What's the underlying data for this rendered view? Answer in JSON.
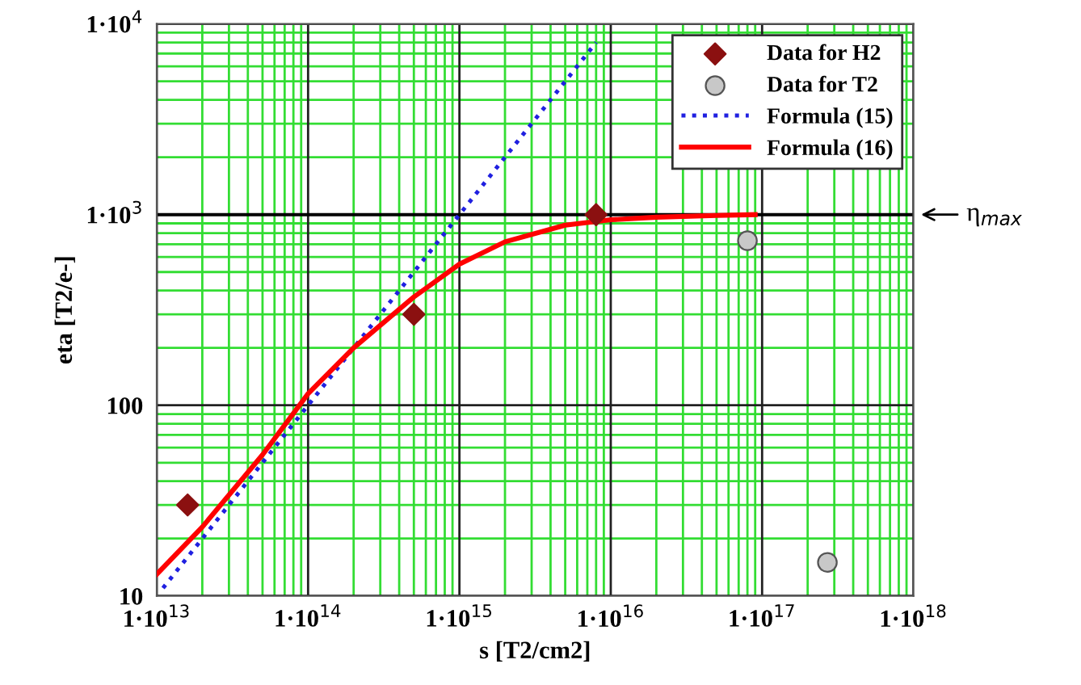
{
  "chart_data": {
    "type": "scatter",
    "xlabel": "s [T2/cm2]",
    "ylabel": "eta [T2/e-]",
    "log": "xy",
    "grid": true,
    "legend": "top right",
    "xlim": [
      10000000000000.0,
      1e+18
    ],
    "ylim": [
      10,
      10000
    ],
    "xticks": [
      {
        "value": 10000000000000.0,
        "label": "1·10$^{13}$"
      },
      {
        "value": 20000000000000.0,
        "label": null
      },
      {
        "value": 30000000000000.0,
        "label": null
      },
      {
        "value": 40000000000000.0,
        "label": null
      },
      {
        "value": 50000000000000.0,
        "label": null
      },
      {
        "value": 60000000000000.0,
        "label": null
      },
      {
        "value": 70000000000000.0,
        "label": null
      },
      {
        "value": 80000000000000.0,
        "label": null
      },
      {
        "value": 90000000000000.0,
        "label": null
      },
      {
        "value": 100000000000000.0,
        "label": "1·10$^{14}$"
      },
      {
        "value": 200000000000000.0,
        "label": null
      },
      {
        "value": 300000000000000.0,
        "label": null
      },
      {
        "value": 400000000000000.0,
        "label": null
      },
      {
        "value": 500000000000000.0,
        "label": null
      },
      {
        "value": 600000000000000.0,
        "label": null
      },
      {
        "value": 700000000000000.0,
        "label": null
      },
      {
        "value": 800000000000000.0,
        "label": null
      },
      {
        "value": 900000000000000.0,
        "label": null
      },
      {
        "value": 1000000000000000.0,
        "label": "1·10$^{15}$"
      },
      {
        "value": 2000000000000000.0,
        "label": null
      },
      {
        "value": 3000000000000000.0,
        "label": null
      },
      {
        "value": 4000000000000000.0,
        "label": null
      },
      {
        "value": 5000000000000000.0,
        "label": null
      },
      {
        "value": 6000000000000000.0,
        "label": null
      },
      {
        "value": 7000000000000000.0,
        "label": null
      },
      {
        "value": 8000000000000000.0,
        "label": null
      },
      {
        "value": 9000000000000000.0,
        "label": null
      },
      {
        "value": 1e+16,
        "label": "1·10$^{16}$"
      },
      {
        "value": 2e+16,
        "label": null
      },
      {
        "value": 3e+16,
        "label": null
      },
      {
        "value": 4e+16,
        "label": null
      },
      {
        "value": 5e+16,
        "label": null
      },
      {
        "value": 6e+16,
        "label": null
      },
      {
        "value": 7e+16,
        "label": null
      },
      {
        "value": 8e+16,
        "label": null
      },
      {
        "value": 9e+16,
        "label": null
      },
      {
        "value": 1e+17,
        "label": "1·10$^{17}$"
      },
      {
        "value": 2e+17,
        "label": null
      },
      {
        "value": 3e+17,
        "label": null
      },
      {
        "value": 4e+17,
        "label": null
      },
      {
        "value": 5e+17,
        "label": null
      },
      {
        "value": 6e+17,
        "label": null
      },
      {
        "value": 7e+17,
        "label": null
      },
      {
        "value": 8e+17,
        "label": null
      },
      {
        "value": 9e+17,
        "label": null
      },
      {
        "value": 1e+18,
        "label": "1·10$^{18}$"
      }
    ],
    "yticks": [
      10,
      {
        "value": 20,
        "label": null
      },
      {
        "value": 30,
        "label": null
      },
      {
        "value": 40,
        "label": null
      },
      {
        "value": 50,
        "label": null
      },
      {
        "value": 60,
        "label": null
      },
      {
        "value": 70,
        "label": null
      },
      {
        "value": 80,
        "label": null
      },
      {
        "value": 90,
        "label": null
      },
      100,
      {
        "value": 200,
        "label": null
      },
      {
        "value": 300,
        "label": null
      },
      {
        "value": 400,
        "label": null
      },
      {
        "value": 500,
        "label": null
      },
      {
        "value": 600,
        "label": null
      },
      {
        "value": 700,
        "label": null
      },
      {
        "value": 800,
        "label": null
      },
      {
        "value": 900,
        "label": null
      },
      {
        "value": 1000,
        "label": "1·10$^{3}$"
      },
      {
        "value": 2000,
        "label": null
      },
      {
        "value": 3000,
        "label": null
      },
      {
        "value": 4000,
        "label": null
      },
      {
        "value": 5000,
        "label": null
      },
      {
        "value": 6000,
        "label": null
      },
      {
        "value": 7000,
        "label": null
      },
      {
        "value": 8000,
        "label": null
      },
      {
        "value": 9000,
        "label": null
      },
      {
        "value": 10000,
        "label": "1·10$^{4}$"
      }
    ],
    "ref_lines": [
      {
        "axis": "y",
        "value": 1000,
        "label": "η$_{max}$",
        "color": "#000000"
      }
    ],
    "series": [
      {
        "name": "Data for H2",
        "marker": "diamond",
        "color": "#8b1010",
        "x": [
          16000000000000.0,
          500000000000000.0,
          8000000000000000.0
        ],
        "values": [
          30,
          300,
          1000
        ]
      },
      {
        "name": "Data for T2",
        "marker": "circle",
        "color": "#c8c8c8",
        "x": [
          8e+16,
          2.7e+17
        ],
        "values": [
          730,
          15
        ]
      },
      {
        "name": "Formula (15)",
        "type": "line",
        "line_style": "dotted",
        "color": "#2020e0",
        "x": [
          11000000000000.0,
          100000000000000.0,
          1000000000000000.0,
          8000000000000000.0
        ],
        "values": [
          11,
          100,
          1000,
          8000
        ]
      },
      {
        "name": "Formula (16)",
        "type": "line",
        "line_style": "solid",
        "color": "#ff0000",
        "x": [
          10000000000000.0,
          20000000000000.0,
          50000000000000.0,
          100000000000000.0,
          200000000000000.0,
          500000000000000.0,
          1000000000000000.0,
          2000000000000000.0,
          5000000000000000.0,
          1e+16,
          2e+16,
          5e+16,
          9e+16
        ],
        "values": [
          13,
          23,
          55,
          115,
          200,
          370,
          550,
          720,
          880,
          940,
          970,
          990,
          1000
        ]
      }
    ]
  }
}
